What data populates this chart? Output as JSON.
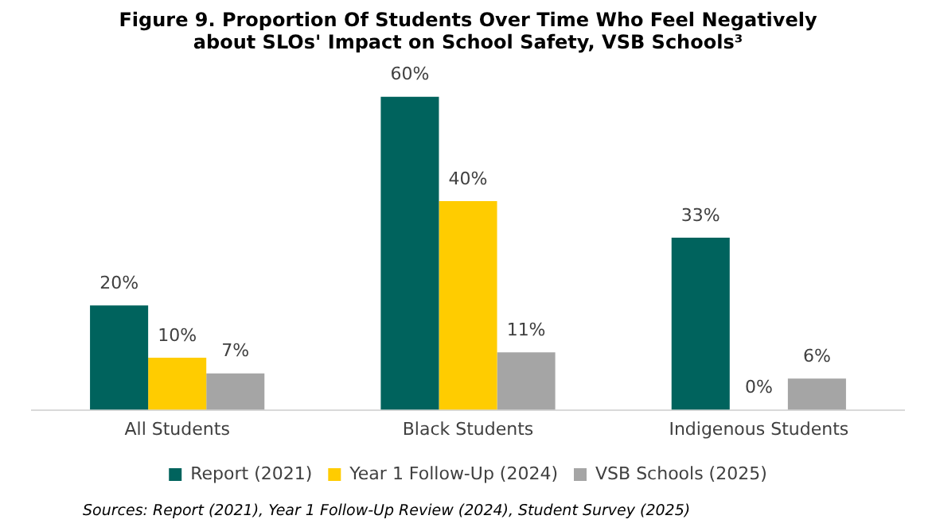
{
  "chart_data": {
    "type": "bar",
    "title": "Figure 9. Proportion Of Students Over Time Who Feel Negatively about SLOs' Impact on School Safety, VSB Schools³",
    "categories": [
      "All Students",
      "Black Students",
      "Indigenous Students"
    ],
    "series": [
      {
        "name": "Report (2021)",
        "color": "#00635d",
        "values": [
          20,
          60,
          33
        ],
        "value_labels": [
          "20%",
          "60%",
          "33%"
        ]
      },
      {
        "name": "Year 1 Follow-Up (2024)",
        "color": "#ffcc00",
        "values": [
          10,
          40,
          0
        ],
        "value_labels": [
          "10%",
          "40%",
          "0%"
        ]
      },
      {
        "name": "VSB Schools (2025)",
        "color": "#a5a5a5",
        "values": [
          7,
          11,
          6
        ],
        "value_labels": [
          "7%",
          "11%",
          "6%"
        ]
      }
    ],
    "legend": "bottom",
    "grid": false,
    "tick_labels": "x",
    "annotations": [
      "Sources: Report (2021), Year 1 Follow-Up Review (2024), Student Survey (2025)"
    ]
  }
}
